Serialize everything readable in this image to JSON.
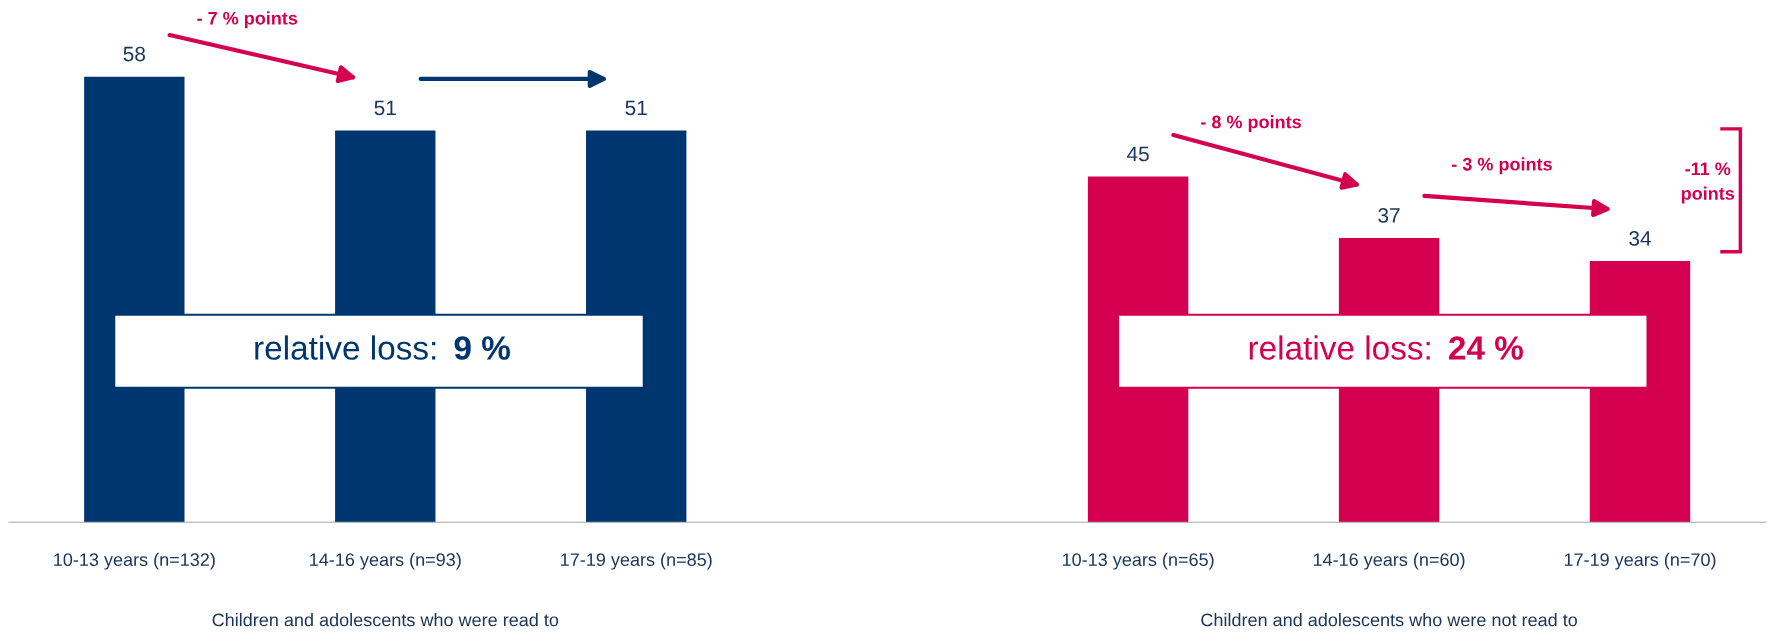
{
  "chart_data": {
    "type": "bar",
    "categories": [
      "10-13 years (n=132)",
      "14-16 years (n=93)",
      "17-19 years (n=85)",
      null,
      "10-13 years (n=65)",
      "14-16 years (n=60)",
      "17-19 years (n=70)"
    ],
    "values": [
      58,
      51,
      51,
      null,
      45,
      37,
      34
    ],
    "colors": [
      "#003670",
      "#003670",
      "#003670",
      null,
      "#d4004f",
      "#d4004f",
      "#d4004f"
    ],
    "tick_labels": "x",
    "data_labels": true,
    "grid": false,
    "legend": false,
    "annotations": [
      "- 7 % points",
      "- 8 % points",
      "- 3 % points",
      "-11 % points",
      "relative loss: 9 %",
      "relative loss: 24 %",
      "Children and adolescents who were read to",
      "Children and adolescents who were not read to"
    ]
  }
}
